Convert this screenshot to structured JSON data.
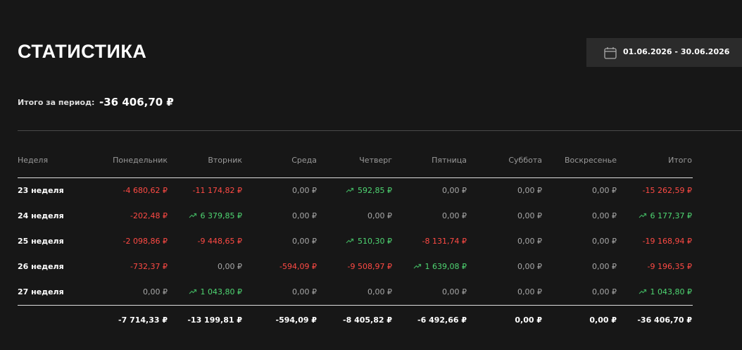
{
  "header": {
    "title": "СТАТИСТИКА",
    "date_range": "01.06.2026 - 30.06.2026"
  },
  "summary": {
    "label": "Итого за период:",
    "value": "-36 406,70 ₽"
  },
  "table": {
    "columns": [
      "Неделя",
      "Понедельник",
      "Вторник",
      "Среда",
      "Четверг",
      "Пятница",
      "Суббота",
      "Воскресенье",
      "Итого"
    ],
    "rows": [
      [
        "23 неделя",
        "-4 680,62 ₽",
        "-11 174,82 ₽",
        "0,00 ₽",
        "592,85 ₽",
        "0,00 ₽",
        "0,00 ₽",
        "0,00 ₽",
        "-15 262,59 ₽"
      ],
      [
        "24 неделя",
        "-202,48 ₽",
        "6 379,85 ₽",
        "0,00 ₽",
        "0,00 ₽",
        "0,00 ₽",
        "0,00 ₽",
        "0,00 ₽",
        "6 177,37 ₽"
      ],
      [
        "25 неделя",
        "-2 098,86 ₽",
        "-9 448,65 ₽",
        "0,00 ₽",
        "510,30 ₽",
        "-8 131,74 ₽",
        "0,00 ₽",
        "0,00 ₽",
        "-19 168,94 ₽"
      ],
      [
        "26 неделя",
        "-732,37 ₽",
        "0,00 ₽",
        "-594,09 ₽",
        "-9 508,97 ₽",
        "1 639,08 ₽",
        "0,00 ₽",
        "0,00 ₽",
        "-9 196,35 ₽"
      ],
      [
        "27 неделя",
        "0,00 ₽",
        "1 043,80 ₽",
        "0,00 ₽",
        "0,00 ₽",
        "0,00 ₽",
        "0,00 ₽",
        "0,00 ₽",
        "1 043,80 ₽"
      ]
    ],
    "totals": [
      "-7 714,33 ₽",
      "-13 199,81 ₽",
      "-594,09 ₽",
      "-8 405,82 ₽",
      "-6 492,66 ₽",
      "0,00 ₽",
      "0,00 ₽",
      "-36 406,70 ₽"
    ]
  }
}
